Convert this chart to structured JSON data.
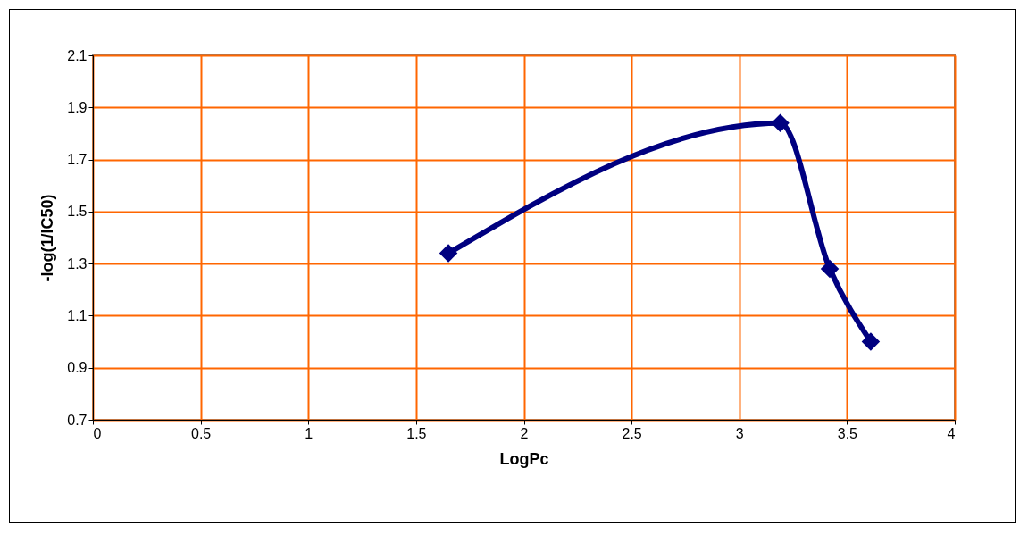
{
  "chart_data": {
    "type": "line",
    "xlabel": "LogPc",
    "ylabel": "-log(1/IC50)",
    "series": [
      {
        "color": "#000080",
        "x": [
          1.65,
          3.19,
          3.42,
          3.61
        ],
        "values": [
          1.34,
          1.84,
          1.28,
          1.0
        ]
      }
    ],
    "xlim": [
      0,
      4
    ],
    "xticks": [
      0,
      0.5,
      1,
      1.5,
      2,
      2.5,
      3,
      3.5,
      4
    ],
    "ylim": [
      0.7,
      2.1
    ],
    "yticks": [
      0.7,
      0.9,
      1.1,
      1.3,
      1.5,
      1.7,
      1.9,
      2.1
    ],
    "grid": true,
    "marker": "diamond",
    "line_style": "solid"
  }
}
